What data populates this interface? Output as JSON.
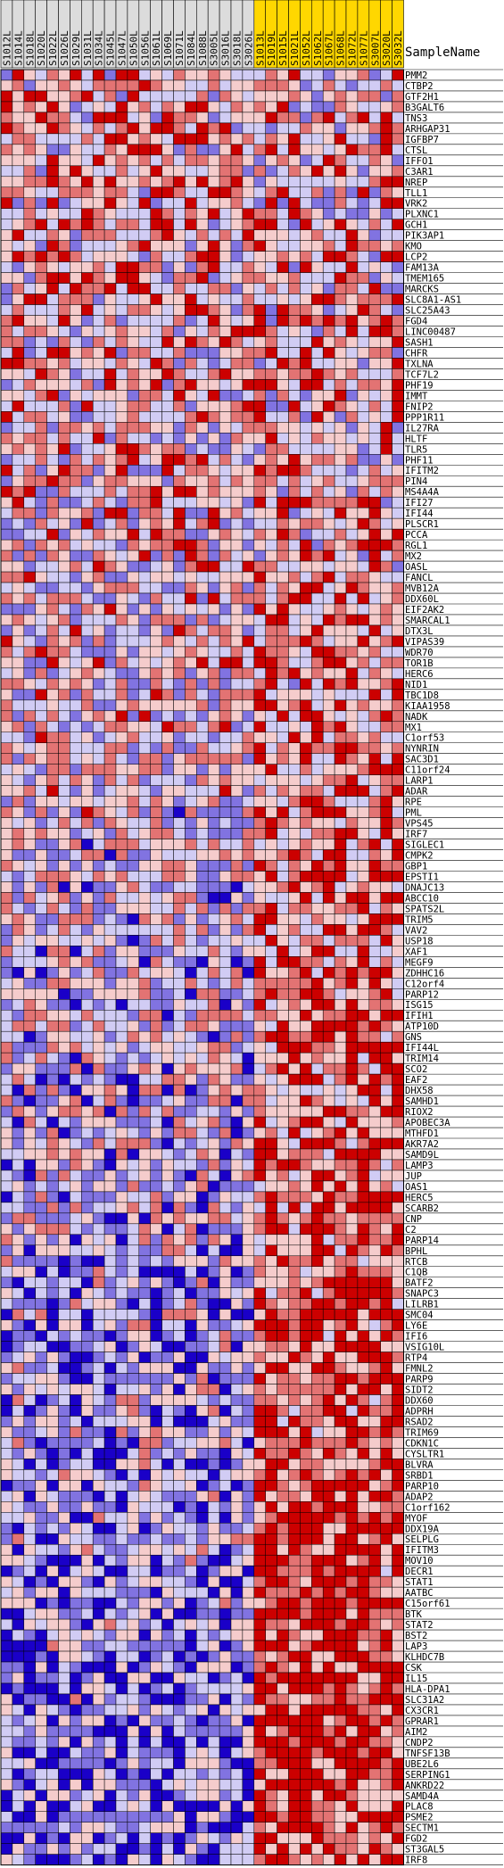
{
  "chart_data": {
    "type": "heatmap",
    "title": "",
    "xlabel": "",
    "ylabel": "",
    "header_label": "SampleName",
    "samples": [
      "S1012L",
      "S1014L",
      "S1018L",
      "S1020L",
      "S1022L",
      "S1026L",
      "S1029L",
      "S1031L",
      "S1034L",
      "S1045L",
      "S1047L",
      "S1050L",
      "S1056L",
      "S1061L",
      "S1069L",
      "S1071L",
      "S1084L",
      "S1088L",
      "S3005L",
      "S3016L",
      "S3018L",
      "S3026L",
      "S1013L",
      "S1019L",
      "S1015L",
      "S1021L",
      "S1052L",
      "S1062L",
      "S1067L",
      "S1068L",
      "S1072L",
      "S1077L",
      "S3007L",
      "S3020L",
      "S3032L"
    ],
    "group_colors": [
      "#dcdcdc",
      "#ffd700"
    ],
    "sample_groups": [
      0,
      0,
      0,
      0,
      0,
      0,
      0,
      0,
      0,
      0,
      0,
      0,
      0,
      0,
      0,
      0,
      0,
      0,
      0,
      0,
      0,
      0,
      1,
      1,
      1,
      1,
      1,
      1,
      1,
      1,
      1,
      1,
      1,
      1,
      1
    ],
    "genes": [
      "PMM2",
      "CTBP2",
      "GTF2H1",
      "B3GALT6",
      "TNS3",
      "ARHGAP31",
      "IGFBP7",
      "CTSL",
      "IFFO1",
      "C3AR1",
      "NREP",
      "TLL1",
      "VRK2",
      "PLXNC1",
      "GCH1",
      "PIK3AP1",
      "KMO",
      "LCP2",
      "FAM13A",
      "TMEM165",
      "MARCKS",
      "SLC8A1-AS1",
      "SLC25A43",
      "FGD4",
      "LINC00487",
      "SASH1",
      "CHFR",
      "TXLNA",
      "TCF7L2",
      "PHF19",
      "IMMT",
      "FNIP2",
      "PPP1R11",
      "IL27RA",
      "HLTF",
      "TLR5",
      "PHF11",
      "IFITM2",
      "PIN4",
      "MS4A4A",
      "IFI27",
      "IFI44",
      "PLSCR1",
      "PCCA",
      "RGL1",
      "MX2",
      "OASL",
      "FANCL",
      "MVB12A",
      "DDX60L",
      "EIF2AK2",
      "SMARCAL1",
      "DTX3L",
      "VIPAS39",
      "WDR70",
      "TOR1B",
      "HERC6",
      "NID1",
      "TBC1D8",
      "KIAA1958",
      "NADK",
      "MX1",
      "C1orf53",
      "NYNRIN",
      "SAC3D1",
      "C11orf24",
      "LARP1",
      "ADAR",
      "RPE",
      "PML",
      "VPS45",
      "IRF7",
      "SIGLEC1",
      "CMPK2",
      "GBP1",
      "EPSTI1",
      "DNAJC13",
      "ABCC10",
      "SPATS2L",
      "TRIM5",
      "VAV2",
      "USP18",
      "XAF1",
      "MEGF9",
      "ZDHHC16",
      "C12orf4",
      "PARP12",
      "ISG15",
      "IFIH1",
      "ATP10D",
      "GNS",
      "IFI44L",
      "TRIM14",
      "SCO2",
      "EAF2",
      "DHX58",
      "SAMHD1",
      "RIOX2",
      "APOBEC3A",
      "MTHFD1",
      "AKR7A2",
      "SAMD9L",
      "LAMP3",
      "JUP",
      "OAS1",
      "HERC5",
      "SCARB2",
      "CNP",
      "C2",
      "PARP14",
      "BPHL",
      "RTCB",
      "C1QB",
      "BATF2",
      "SNAPC3",
      "LILRB1",
      "SMC04",
      "LY6E",
      "IFI6",
      "VSIG10L",
      "RTP4",
      "FMNL2",
      "PARP9",
      "SIDT2",
      "DDX60",
      "ADPRH",
      "RSAD2",
      "TRIM69",
      "CDKN1C",
      "CYSLTR1",
      "BLVRA",
      "SRBD1",
      "PARP10",
      "ADAP2",
      "C1orf162",
      "MYOF",
      "DDX19A",
      "SELPLG",
      "IFITM3",
      "MOV10",
      "DECR1",
      "STAT1",
      "AATBC",
      "C15orf61",
      "BTK",
      "STAT2",
      "BST2",
      "LAP3",
      "KLHDC7B",
      "CSK",
      "IL15",
      "HLA-DPA1",
      "SLC31A2",
      "CX3CR1",
      "GPRAR1",
      "AIM2",
      "CNDP2",
      "TNFSF13B",
      "UBE2L6",
      "SERPING1",
      "ANKRD22",
      "SAMD4A",
      "PLAC8",
      "PSME2",
      "SECTM1",
      "FGD2",
      "ST3GAL5",
      "IRF8"
    ],
    "color_scale": {
      "low": "#1a00c8",
      "mid": "#ffffff",
      "high": "#cc0000"
    },
    "grid": true
  }
}
